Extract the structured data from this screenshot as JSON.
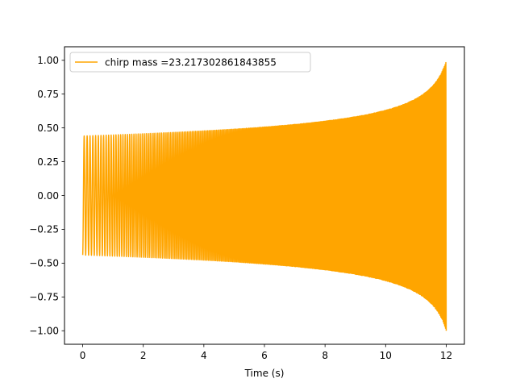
{
  "chart_data": {
    "type": "line",
    "title": "",
    "xlabel": "Time (s)",
    "ylabel": "",
    "xlim": [
      -0.6,
      12.6
    ],
    "ylim": [
      -1.1,
      1.1
    ],
    "x_ticks": [
      0,
      2,
      4,
      6,
      8,
      10,
      12
    ],
    "x_tick_labels": [
      "0",
      "2",
      "4",
      "6",
      "8",
      "10",
      "12"
    ],
    "y_ticks": [
      -1.0,
      -0.75,
      -0.5,
      -0.25,
      0.0,
      0.25,
      0.5,
      0.75,
      1.0
    ],
    "y_tick_labels": [
      "−1.00",
      "−0.75",
      "−0.50",
      "−0.25",
      "0.00",
      "0.25",
      "0.50",
      "0.75",
      "1.00"
    ],
    "grid": false,
    "legend_position": "top-left",
    "series": [
      {
        "name": "chirp mass =23.217302861843855",
        "color": "#ffa500",
        "x_start": 0,
        "x_end": 12,
        "amplitude_start": 0.44,
        "amplitude_end": 1.0,
        "frequency_start_hz": 10,
        "frequency_end_hz": 40
      }
    ]
  }
}
